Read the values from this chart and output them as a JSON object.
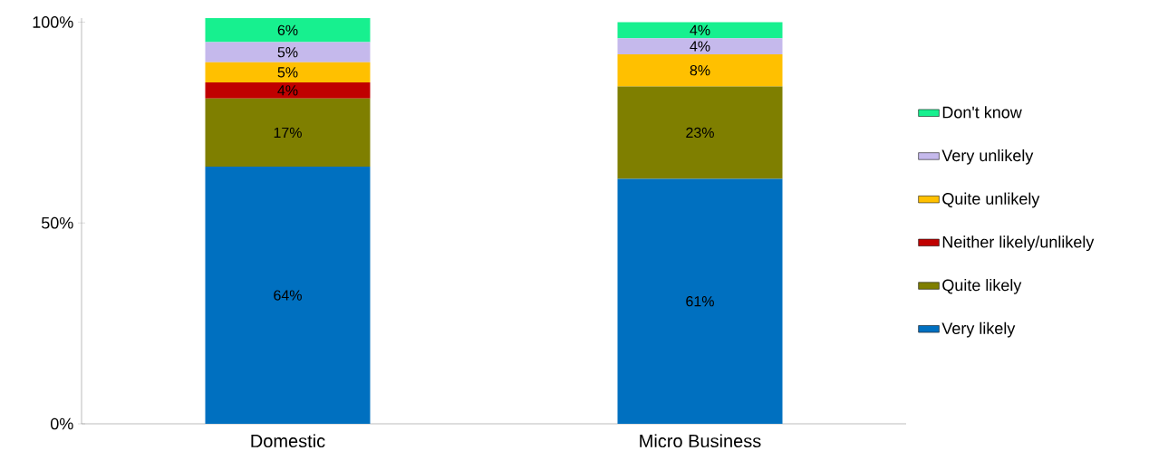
{
  "chart_data": {
    "type": "bar",
    "stacked": true,
    "categories": [
      "Domestic",
      "Micro Business"
    ],
    "series": [
      {
        "name": "Very likely",
        "color": "#0070c0",
        "values": [
          64,
          61
        ],
        "value_labels": [
          "64%",
          "61%"
        ]
      },
      {
        "name": "Quite likely",
        "color": "#7f7f00",
        "values": [
          17,
          23
        ],
        "value_labels": [
          "17%",
          "23%"
        ]
      },
      {
        "name": "Neither likely/unlikely",
        "color": "#c00000",
        "values": [
          4,
          0
        ],
        "value_labels": [
          "4%",
          null
        ]
      },
      {
        "name": "Quite unlikely",
        "color": "#ffc000",
        "values": [
          5,
          8
        ],
        "value_labels": [
          "5%",
          "8%"
        ]
      },
      {
        "name": "Very unlikely",
        "color": "#c5b9ec",
        "values": [
          5,
          4
        ],
        "value_labels": [
          "5%",
          "4%"
        ]
      },
      {
        "name": "Don't know",
        "color": "#17f08f",
        "values": [
          6,
          4
        ],
        "value_labels": [
          "6%",
          "4%"
        ]
      }
    ],
    "ylim": [
      0,
      101
    ],
    "yticks": [
      {
        "value": 0,
        "label": "0%"
      },
      {
        "value": 50,
        "label": "50%"
      },
      {
        "value": 100,
        "label": "100%"
      }
    ],
    "legend": "right"
  }
}
